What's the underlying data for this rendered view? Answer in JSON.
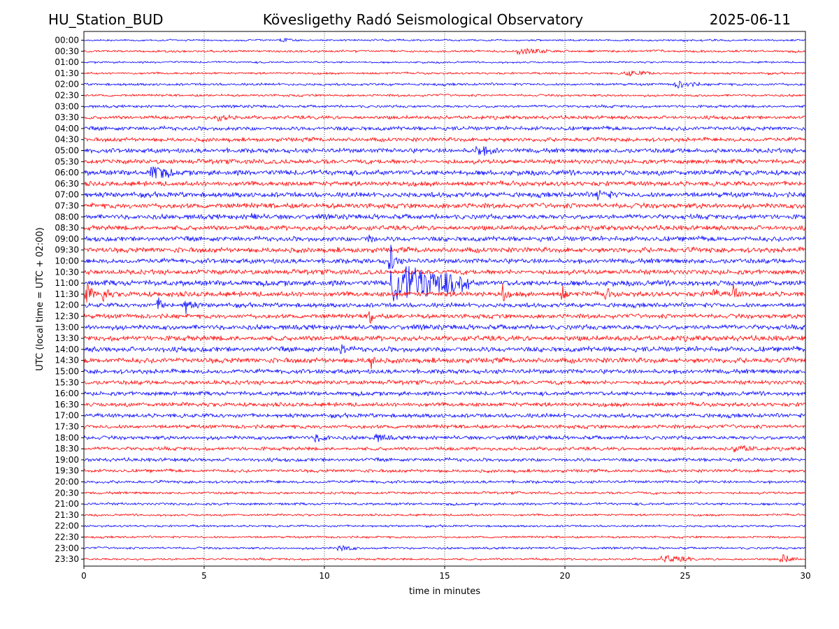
{
  "header": {
    "station": "HU_Station_BUD",
    "observatory": "Kövesligethy Radó Seismological Observatory",
    "date": "2025-06-11"
  },
  "chart_data": {
    "type": "line",
    "title": "Kövesligethy Radó Seismological Observatory",
    "xlabel": "time in minutes",
    "ylabel": "UTC (local time = UTC + 02:00)",
    "xlim": [
      0,
      30
    ],
    "x_ticks": [
      "0",
      "5",
      "10",
      "15",
      "20",
      "25",
      "30"
    ],
    "x_tick_values": [
      0,
      5,
      10,
      15,
      20,
      25,
      30
    ],
    "grid": "vertical-dotted",
    "rows": [
      "00:00",
      "00:30",
      "01:00",
      "01:30",
      "02:00",
      "02:30",
      "03:00",
      "03:30",
      "04:00",
      "04:30",
      "05:00",
      "05:30",
      "06:00",
      "06:30",
      "07:00",
      "07:30",
      "08:00",
      "08:30",
      "09:00",
      "09:30",
      "10:00",
      "10:30",
      "11:00",
      "11:30",
      "12:00",
      "12:30",
      "13:00",
      "13:30",
      "14:00",
      "14:30",
      "15:00",
      "15:30",
      "16:00",
      "16:30",
      "17:00",
      "17:30",
      "18:00",
      "18:30",
      "19:00",
      "19:30",
      "20:00",
      "20:30",
      "21:00",
      "21:30",
      "22:00",
      "22:30",
      "23:00",
      "23:30"
    ],
    "trace_colors": [
      "#0000ff",
      "#ff0000"
    ],
    "noise_amplitude": [
      1.0,
      1.2,
      1.0,
      1.2,
      1.4,
      1.3,
      1.5,
      2.0,
      2.3,
      2.3,
      2.6,
      2.6,
      3.0,
      2.8,
      3.0,
      3.0,
      2.8,
      2.8,
      2.8,
      3.0,
      2.8,
      2.8,
      3.2,
      3.0,
      2.6,
      2.6,
      2.8,
      3.0,
      3.0,
      3.0,
      2.6,
      2.4,
      2.4,
      2.4,
      2.4,
      2.2,
      2.2,
      2.0,
      2.0,
      1.8,
      1.6,
      1.4,
      1.4,
      1.2,
      1.2,
      1.2,
      1.2,
      1.2
    ],
    "events": [
      {
        "row": 0,
        "t": 8.2,
        "amp": 3,
        "dur": 0.3
      },
      {
        "row": 1,
        "t": 18.0,
        "amp": 4,
        "dur": 1.2
      },
      {
        "row": 3,
        "t": 22.5,
        "amp": 4,
        "dur": 0.8
      },
      {
        "row": 4,
        "t": 24.6,
        "amp": 5,
        "dur": 0.6
      },
      {
        "row": 7,
        "t": 5.5,
        "amp": 4,
        "dur": 0.5
      },
      {
        "row": 10,
        "t": 16.3,
        "amp": 7,
        "dur": 0.6
      },
      {
        "row": 12,
        "t": 2.8,
        "amp": 12,
        "dur": 0.5
      },
      {
        "row": 14,
        "t": 21.3,
        "amp": 7,
        "dur": 0.4
      },
      {
        "row": 16,
        "t": 7.0,
        "amp": 8,
        "dur": 0.1
      },
      {
        "row": 18,
        "t": 11.8,
        "amp": 14,
        "dur": 0.1
      },
      {
        "row": 20,
        "t": 12.7,
        "amp": 30,
        "dur": 0.15
      },
      {
        "row": 22,
        "t": 12.8,
        "amp": 28,
        "dur": 2.8
      },
      {
        "row": 23,
        "t": 0.1,
        "amp": 14,
        "dur": 0.2
      },
      {
        "row": 23,
        "t": 0.8,
        "amp": 12,
        "dur": 0.15
      },
      {
        "row": 23,
        "t": 17.4,
        "amp": 14,
        "dur": 0.1
      },
      {
        "row": 23,
        "t": 19.9,
        "amp": 12,
        "dur": 0.1
      },
      {
        "row": 23,
        "t": 21.7,
        "amp": 12,
        "dur": 0.1
      },
      {
        "row": 23,
        "t": 26.2,
        "amp": 14,
        "dur": 0.1
      },
      {
        "row": 23,
        "t": 27.0,
        "amp": 16,
        "dur": 0.1
      },
      {
        "row": 24,
        "t": 3.1,
        "amp": 10,
        "dur": 0.15
      },
      {
        "row": 24,
        "t": 4.2,
        "amp": 14,
        "dur": 0.2
      },
      {
        "row": 25,
        "t": 11.9,
        "amp": 14,
        "dur": 0.1
      },
      {
        "row": 28,
        "t": 10.7,
        "amp": 14,
        "dur": 0.1
      },
      {
        "row": 29,
        "t": 11.9,
        "amp": 16,
        "dur": 0.12
      },
      {
        "row": 36,
        "t": 9.6,
        "amp": 5,
        "dur": 0.4
      },
      {
        "row": 36,
        "t": 12.1,
        "amp": 5,
        "dur": 0.4
      },
      {
        "row": 37,
        "t": 27.0,
        "amp": 5,
        "dur": 0.6
      },
      {
        "row": 46,
        "t": 10.6,
        "amp": 5,
        "dur": 0.4
      },
      {
        "row": 47,
        "t": 24.0,
        "amp": 5,
        "dur": 1.0
      },
      {
        "row": 47,
        "t": 29.0,
        "amp": 8,
        "dur": 0.3
      }
    ]
  }
}
